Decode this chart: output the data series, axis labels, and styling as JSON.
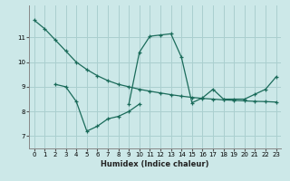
{
  "xlabel": "Humidex (Indice chaleur)",
  "background_color": "#cce8e8",
  "grid_color": "#aacfcf",
  "line_color": "#1a6b5a",
  "curve1_x": [
    0,
    1,
    2,
    3,
    4,
    5,
    6,
    7,
    8,
    9,
    10,
    11,
    12,
    13,
    14,
    15,
    16,
    17,
    18,
    19,
    20,
    21,
    22,
    23
  ],
  "curve1_y": [
    11.7,
    11.35,
    10.9,
    10.45,
    10.0,
    9.7,
    9.45,
    9.25,
    9.1,
    9.0,
    8.9,
    8.82,
    8.75,
    8.68,
    8.62,
    8.57,
    8.53,
    8.5,
    8.47,
    8.45,
    8.43,
    8.41,
    8.4,
    8.38
  ],
  "curve2_x": [
    2,
    3,
    4,
    5,
    6,
    7,
    8,
    9,
    10
  ],
  "curve2_y": [
    9.1,
    9.0,
    8.4,
    7.2,
    7.4,
    7.7,
    7.8,
    8.0,
    8.3
  ],
  "curve3_x": [
    9,
    10,
    11,
    12,
    13,
    14,
    15,
    16,
    17,
    18,
    19,
    20,
    21,
    22,
    23
  ],
  "curve3_y": [
    8.3,
    10.4,
    11.05,
    11.1,
    11.15,
    10.2,
    8.35,
    8.55,
    8.9,
    8.5,
    8.5,
    8.5,
    8.7,
    8.9,
    9.4
  ],
  "ylim": [
    6.5,
    12.3
  ],
  "xlim": [
    -0.5,
    23.5
  ],
  "yticks": [
    7,
    8,
    9,
    10,
    11
  ],
  "xticks": [
    0,
    1,
    2,
    3,
    4,
    5,
    6,
    7,
    8,
    9,
    10,
    11,
    12,
    13,
    14,
    15,
    16,
    17,
    18,
    19,
    20,
    21,
    22,
    23
  ],
  "figsize": [
    3.2,
    2.0
  ],
  "dpi": 100
}
